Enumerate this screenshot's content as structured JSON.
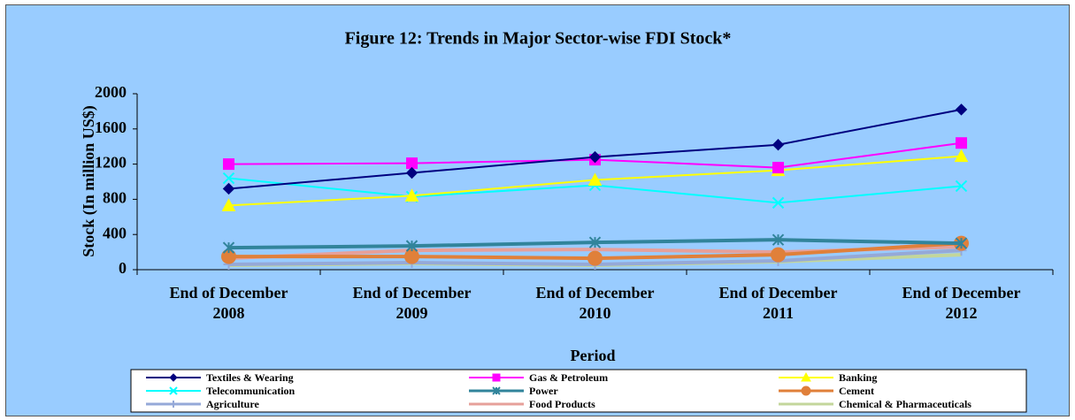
{
  "chart_data": {
    "type": "line",
    "title": "Figure 12: Trends in  Major Sector-wise FDI Stock*",
    "x_label": "Period",
    "y_label": "Stock (In million US$)",
    "categories": [
      "End of December 2008",
      "End of December 2009",
      "End of December 2010",
      "End of December 2011",
      "End of December 2012"
    ],
    "ylim": [
      0,
      2000
    ],
    "yticks": [
      0,
      400,
      800,
      1200,
      1600,
      2000
    ],
    "series": [
      {
        "name": "Textiles & Wearing",
        "color": "#000080",
        "marker": "diamond",
        "values": [
          920,
          1100,
          1280,
          1420,
          1820
        ]
      },
      {
        "name": "Gas & Petroleum",
        "color": "#ff00ff",
        "marker": "square",
        "values": [
          1200,
          1210,
          1250,
          1160,
          1440
        ]
      },
      {
        "name": "Banking",
        "color": "#ffff00",
        "marker": "triangle",
        "values": [
          730,
          840,
          1020,
          1130,
          1290
        ]
      },
      {
        "name": "Telecommunication",
        "color": "#00ffff",
        "marker": "x",
        "values": [
          1040,
          830,
          960,
          760,
          950
        ]
      },
      {
        "name": "Power",
        "color": "#31849b",
        "marker": "star",
        "values": [
          250,
          270,
          310,
          340,
          300
        ]
      },
      {
        "name": "Cement",
        "color": "#e0803a",
        "marker": "circle",
        "values": [
          150,
          150,
          130,
          170,
          300
        ]
      },
      {
        "name": "Agriculture",
        "color": "#95a9d8",
        "marker": "plus",
        "values": [
          60,
          80,
          60,
          100,
          220
        ]
      },
      {
        "name": "Food Products",
        "color": "#e6a09a",
        "marker": "none",
        "values": [
          130,
          220,
          230,
          200,
          260
        ]
      },
      {
        "name": "Chemical & Pharmaceuticals",
        "color": "#c3d69b",
        "marker": "none",
        "values": [
          50,
          70,
          50,
          90,
          170
        ]
      }
    ]
  }
}
